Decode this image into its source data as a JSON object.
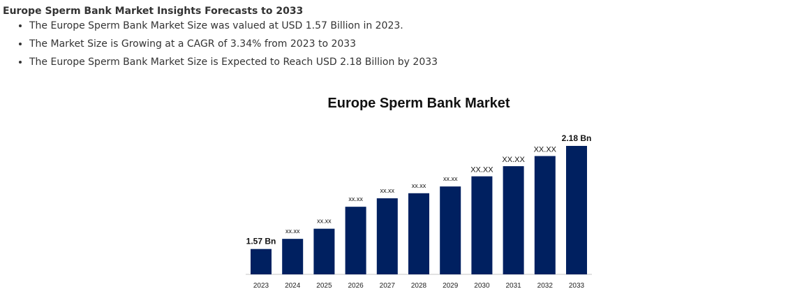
{
  "heading": "Europe Sperm Bank Market Insights Forecasts to 2033",
  "bullets": [
    "The Europe Sperm Bank Market Size was valued at USD 1.57 Billion in 2023.",
    "The Market Size is Growing at a CAGR of 3.34% from 2023 to 2033",
    "The Europe Sperm Bank Market Size is Expected to Reach USD 2.18 Billion by 2033"
  ],
  "chart_data": {
    "type": "bar",
    "title": "Europe Sperm Bank Market",
    "xlabel": "",
    "ylabel": "",
    "categories": [
      "2023",
      "2024",
      "2025",
      "2026",
      "2027",
      "2028",
      "2029",
      "2030",
      "2031",
      "2032",
      "2033"
    ],
    "values": [
      1.57,
      1.63,
      1.69,
      1.82,
      1.87,
      1.9,
      1.94,
      2.0,
      2.06,
      2.12,
      2.18
    ],
    "data_labels": [
      "1.57 Bn",
      "xx.xx",
      "xx.xx",
      "xx.xx",
      "xx.xx",
      "xx.xx",
      "xx.xx",
      "XX.XX",
      "XX.XX",
      "XX.XX",
      "2.18 Bn"
    ],
    "ylim": [
      1.42,
      2.18
    ],
    "y_axis_visible": false,
    "grid": false,
    "bar_color": "#002060"
  }
}
